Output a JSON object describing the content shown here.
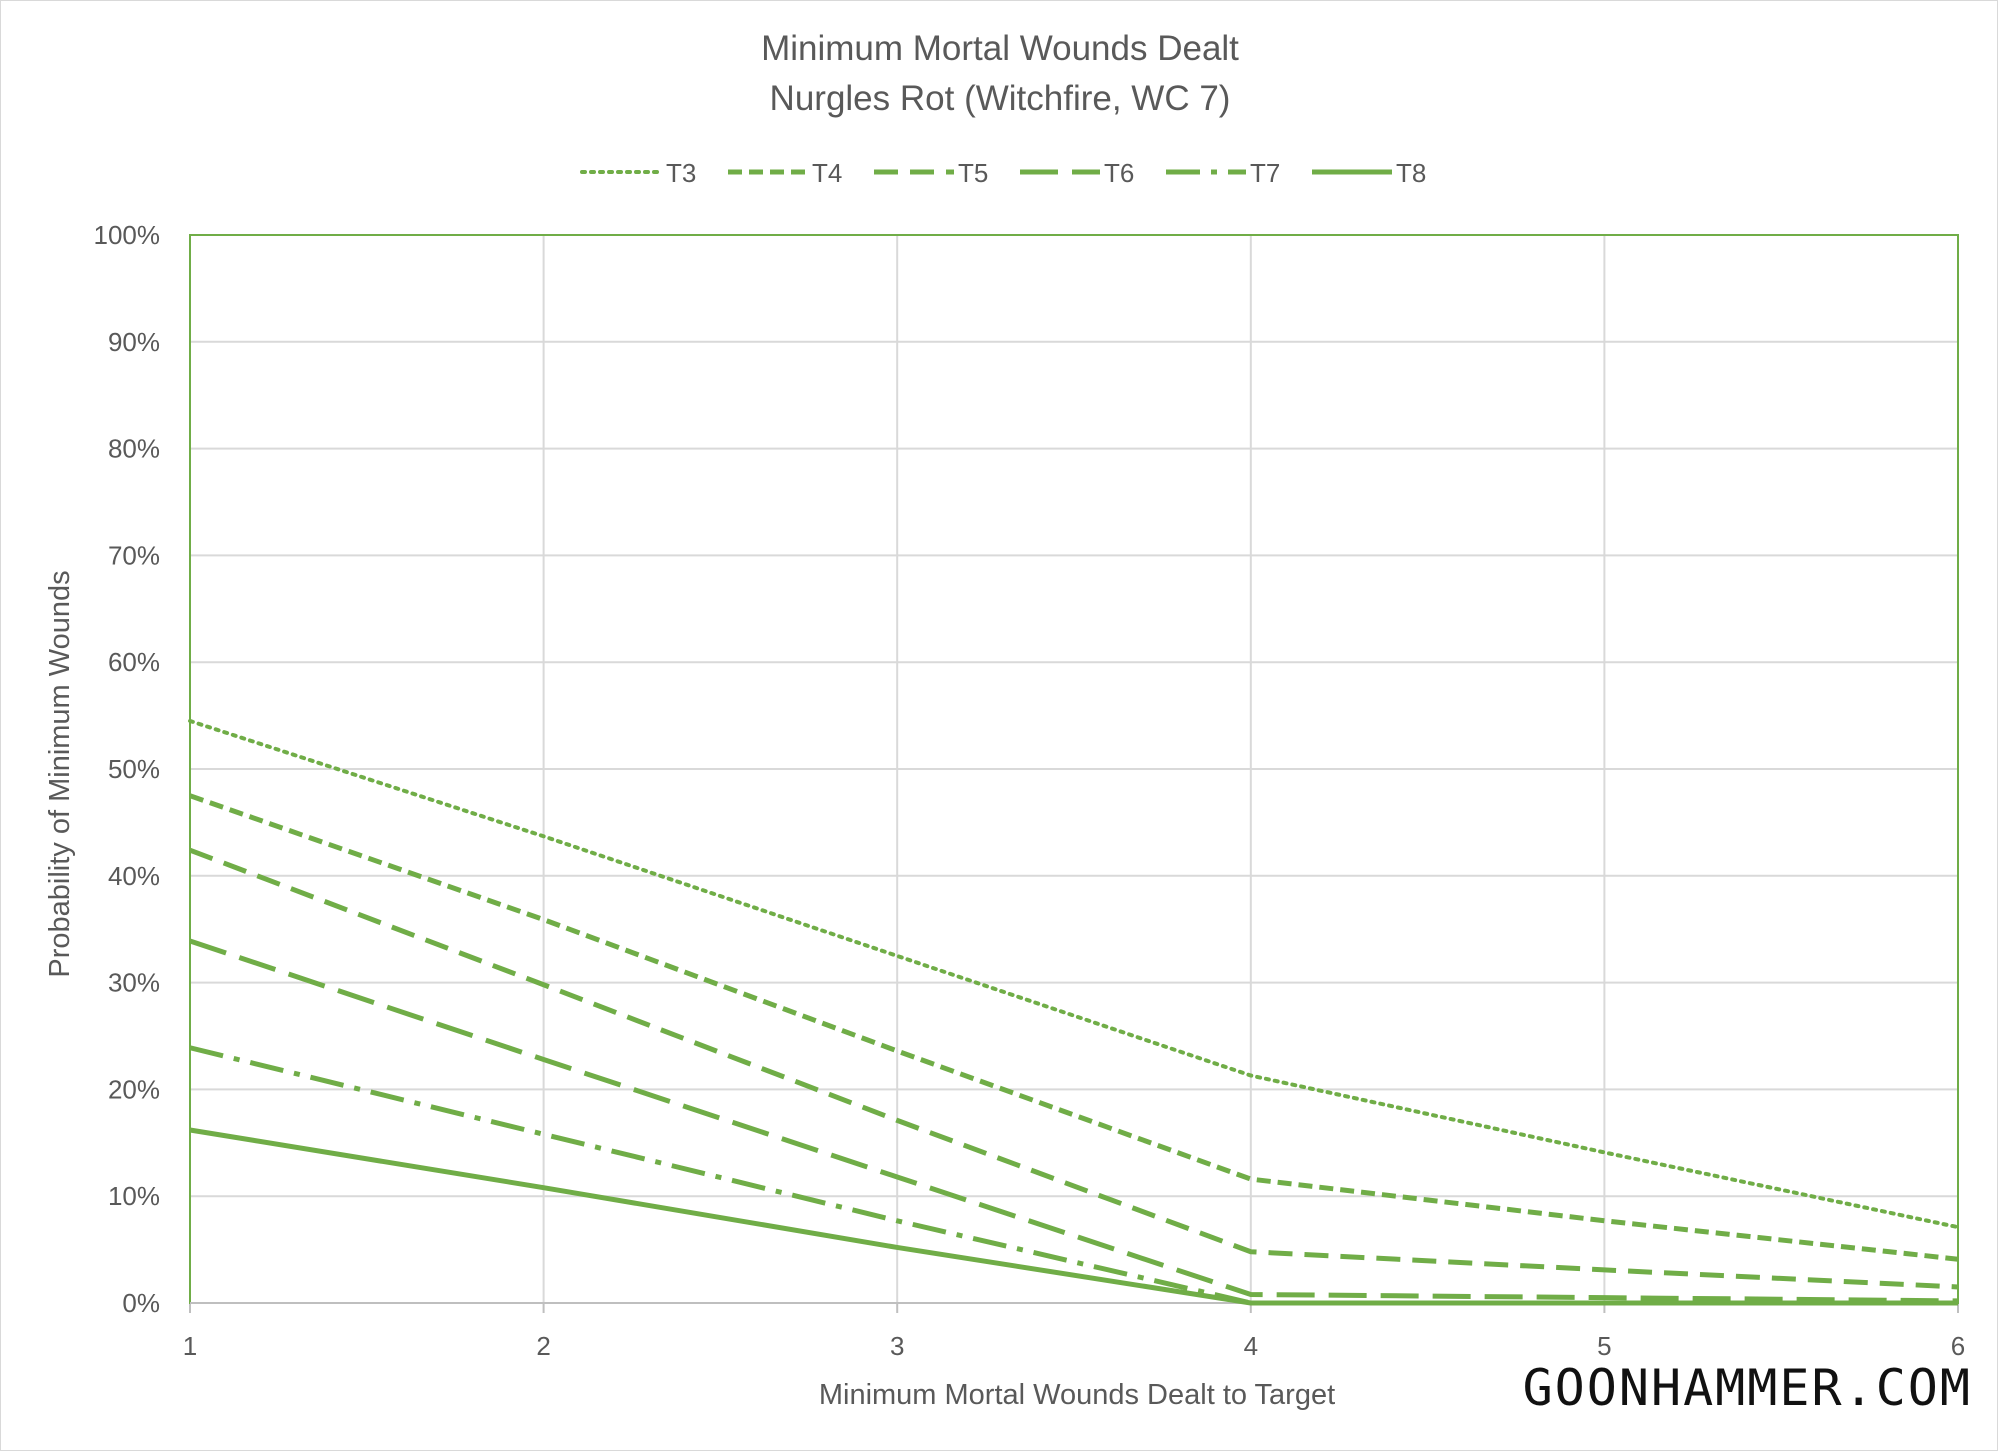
{
  "chart_data": {
    "type": "line",
    "title": "Minimum Mortal Wounds Dealt",
    "subtitle": "Nurgles Rot (Witchfire, WC 7)",
    "xlabel": "Minimum Mortal Wounds Dealt to Target",
    "ylabel": "Probability of Minimum Wounds",
    "x": [
      1,
      2,
      3,
      4,
      5,
      6
    ],
    "x_tick_labels": [
      "1",
      "2",
      "3",
      "4",
      "5",
      "6"
    ],
    "xlim": [
      1,
      6
    ],
    "ylim": [
      0,
      1
    ],
    "y_ticks": [
      0,
      0.1,
      0.2,
      0.3,
      0.4,
      0.5,
      0.6,
      0.7,
      0.8,
      0.9,
      1.0
    ],
    "y_tick_labels": [
      "0%",
      "10%",
      "20%",
      "30%",
      "40%",
      "50%",
      "60%",
      "70%",
      "80%",
      "90%",
      "100%"
    ],
    "grid": true,
    "legend_position": "top",
    "series": [
      {
        "name": "T3",
        "dash": "dotted",
        "values": [
          0.545,
          0.437,
          0.325,
          0.213,
          0.141,
          0.071
        ]
      },
      {
        "name": "T4",
        "dash": "short-dash",
        "values": [
          0.475,
          0.359,
          0.236,
          0.116,
          0.077,
          0.041
        ]
      },
      {
        "name": "T5",
        "dash": "dash",
        "values": [
          0.424,
          0.298,
          0.171,
          0.048,
          0.031,
          0.015
        ]
      },
      {
        "name": "T6",
        "dash": "long-dash",
        "values": [
          0.339,
          0.228,
          0.118,
          0.008,
          0.005,
          0.002
        ]
      },
      {
        "name": "T7",
        "dash": "dash-dot",
        "values": [
          0.239,
          0.158,
          0.077,
          0.0,
          0.0,
          0.0
        ]
      },
      {
        "name": "T8",
        "dash": "solid",
        "values": [
          0.162,
          0.108,
          0.052,
          0.0,
          0.0,
          0.0
        ]
      }
    ],
    "colors": {
      "line": "#70ad47",
      "grid": "#d9d9d9",
      "axis": "#bfbfbf",
      "text": "#595959"
    }
  },
  "watermark": "GOONHAMMER.COM"
}
